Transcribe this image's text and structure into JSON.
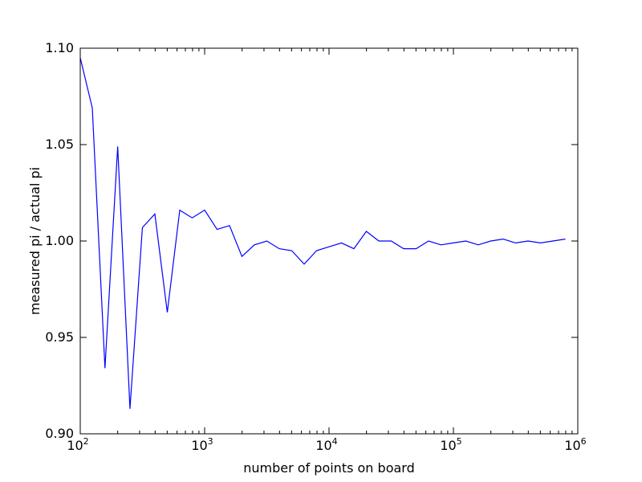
{
  "chart_data": {
    "type": "line",
    "title": "",
    "xlabel": "number of points on board",
    "ylabel": "measured pi / actual pi",
    "xscale": "log",
    "xlim": [
      100,
      1000000
    ],
    "ylim": [
      0.9,
      1.1
    ],
    "grid": false,
    "legend": "none",
    "line_color": "#0000ff",
    "x_ticks": [
      {
        "base": "10",
        "exp": "2",
        "value": 100
      },
      {
        "base": "10",
        "exp": "3",
        "value": 1000
      },
      {
        "base": "10",
        "exp": "4",
        "value": 10000
      },
      {
        "base": "10",
        "exp": "5",
        "value": 100000
      },
      {
        "base": "10",
        "exp": "6",
        "value": 1000000
      }
    ],
    "y_ticks": [
      {
        "label": "0.90",
        "value": 0.9
      },
      {
        "label": "0.95",
        "value": 0.95
      },
      {
        "label": "1.00",
        "value": 1.0
      },
      {
        "label": "1.05",
        "value": 1.05
      },
      {
        "label": "1.10",
        "value": 1.1
      }
    ],
    "series": [
      {
        "x": [
          100,
          125,
          158,
          200,
          251,
          316,
          398,
          501,
          631,
          794,
          1000,
          1259,
          1585,
          1995,
          2512,
          3162,
          3981,
          5012,
          6310,
          7943,
          10000,
          12589,
          15849,
          19953,
          25119,
          31623,
          39811,
          50119,
          63096,
          79433,
          100000,
          125893,
          158489,
          199526,
          251189,
          316228,
          398107,
          501187,
          630957,
          794328
        ],
        "y": [
          1.095,
          1.069,
          0.934,
          1.049,
          0.913,
          1.007,
          1.014,
          0.963,
          1.016,
          1.012,
          1.016,
          1.006,
          1.008,
          0.992,
          0.998,
          1.0,
          0.996,
          0.995,
          0.988,
          0.995,
          0.997,
          0.999,
          0.996,
          1.005,
          1.0,
          1.0,
          0.996,
          0.996,
          1.0,
          0.998,
          0.999,
          1.0,
          0.998,
          1.0,
          1.001,
          0.999,
          1.0,
          0.999,
          1.0,
          1.001
        ]
      }
    ]
  }
}
